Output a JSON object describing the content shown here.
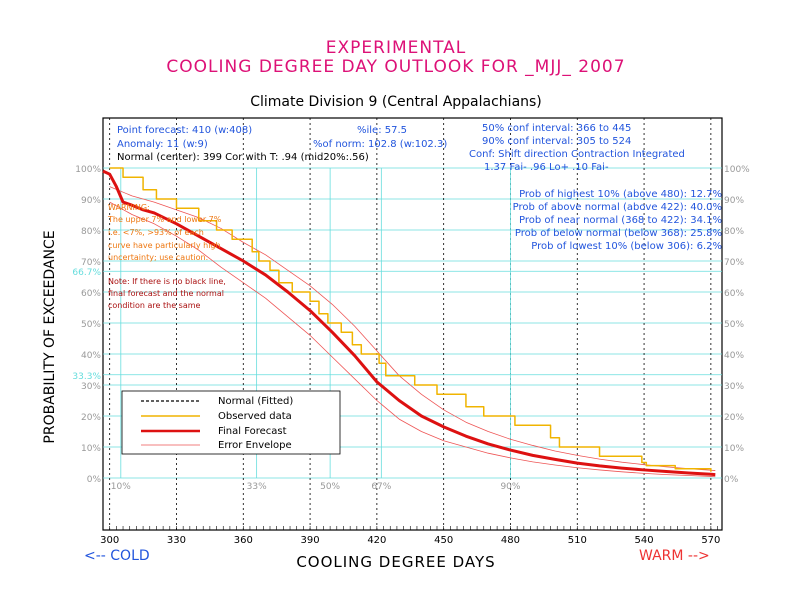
{
  "header": {
    "line1": "EXPERIMENTAL",
    "line2": "COOLING DEGREE DAY OUTLOOK FOR _MJJ_ 2007",
    "subtitle": "Climate Division 9 (Central Appalachians)"
  },
  "info": {
    "point_forecast": "Point forecast: 410 (w:408)",
    "anomaly": "Anomaly: 11 (w:9)",
    "normal": "Normal (center): 399  Cor with T: .94 (mid20%:.56)",
    "pctile": "%ile: 57.5",
    "pct_norm": "%of norm: 102.8 (w:102.3)",
    "ci50": "50% conf interval: 366 to 445",
    "ci90": "90% conf interval: 305 to 524",
    "conf_hdr": "Conf: Shift direction   Contraction   Integrated",
    "conf_vals": "1.37 Fai-          .96 Lo+    .10 Fai-"
  },
  "probs": [
    "Prob of highest 10% (above 480): 12.7%",
    "Prob of above normal (above 422): 40.0%",
    "Prob of near normal (368 to 422): 34.1%",
    "Prob of below normal (below 368): 25.8%",
    "Prob of lowest 10% (below 306): 6.2%"
  ],
  "warning": {
    "lines": [
      "WARNING:",
      "The upper 7% and lower 7%",
      "i.e. <7%, >93% of each",
      "curve have particularly high",
      "uncertainty; use caution."
    ],
    "note": [
      "Note: If there is no black line,",
      "final forecast and  the normal",
      "condition are the same"
    ]
  },
  "legend": {
    "items": [
      {
        "label": "Normal (Fitted)",
        "color": "#000000",
        "style": "dashed"
      },
      {
        "label": "Observed data",
        "color": "#f0b400",
        "style": "solid"
      },
      {
        "label": "Final Forecast",
        "color": "#dd1111",
        "style": "thick"
      },
      {
        "label": "Error Envelope",
        "color": "#ee5555",
        "style": "thin"
      }
    ]
  },
  "footer": {
    "cold": "<-- COLD",
    "warm": "WARM  -->"
  },
  "colors": {
    "title": "#dd1177",
    "info": "#2255dd",
    "cyan": "#66dddd",
    "warning": "#ee7711",
    "note": "#aa1111"
  },
  "chart_data": {
    "type": "line",
    "xlabel": "COOLING DEGREE DAYS",
    "ylabel": "PROBABILITY OF EXCEEDANCE",
    "xlim": [
      297,
      575
    ],
    "ylim": [
      0,
      100
    ],
    "x_ticks": [
      300,
      330,
      360,
      390,
      420,
      450,
      480,
      510,
      540,
      570
    ],
    "y_ticks": [
      0,
      10,
      20,
      30,
      40,
      50,
      60,
      70,
      80,
      90,
      100
    ],
    "y_tick_labels": [
      "0%",
      "10%",
      "20%",
      "30%",
      "40%",
      "50%",
      "60%",
      "70%",
      "80%",
      "90%",
      "100%"
    ],
    "percentile_marks": [
      {
        "label": "10%",
        "x": 305
      },
      {
        "label": "33%",
        "x": 366
      },
      {
        "label": "50%",
        "x": 399
      },
      {
        "label": "67%",
        "x": 422
      },
      {
        "label": "90%",
        "x": 480
      }
    ],
    "y_refs": [
      {
        "label": "66.7%",
        "y": 66.7
      },
      {
        "label": "33.3%",
        "y": 33.3
      }
    ],
    "series": [
      {
        "name": "Final Forecast",
        "x": [
          297,
          300,
          303,
          306,
          310,
          315,
          320,
          330,
          340,
          350,
          360,
          370,
          380,
          390,
          400,
          410,
          420,
          430,
          440,
          450,
          460,
          470,
          480,
          490,
          500,
          510,
          520,
          530,
          540,
          550,
          560,
          570,
          572
        ],
        "y": [
          99,
          98,
          94,
          89,
          88,
          86.5,
          85.5,
          82,
          78,
          74,
          70,
          65.5,
          60,
          54,
          47,
          39.5,
          31,
          25,
          20,
          16.5,
          13.5,
          11,
          9,
          7.3,
          6,
          4.8,
          3.9,
          3.2,
          2.6,
          2.1,
          1.6,
          1.2,
          1.1
        ]
      },
      {
        "name": "Error Envelope (upper)",
        "x": [
          300,
          310,
          320,
          330,
          340,
          350,
          360,
          370,
          380,
          390,
          400,
          410,
          420,
          430,
          440,
          450,
          460,
          470,
          480,
          490,
          500,
          510,
          520,
          530,
          540,
          550,
          560,
          570,
          572
        ],
        "y": [
          94,
          91,
          89,
          86.5,
          84,
          80.5,
          76,
          72,
          67,
          62,
          56,
          49,
          41,
          33,
          27,
          22,
          18,
          15,
          12.5,
          10.5,
          8.7,
          7.3,
          6.1,
          5.1,
          4.3,
          3.6,
          3,
          2.5,
          2.4
        ]
      },
      {
        "name": "Error Envelope (lower)",
        "x": [
          300,
          310,
          320,
          330,
          340,
          350,
          360,
          370,
          380,
          390,
          400,
          410,
          420,
          430,
          440,
          450,
          460,
          470,
          480,
          490,
          500,
          510,
          520,
          530,
          540,
          550,
          560,
          570,
          572
        ],
        "y": [
          89,
          85,
          82,
          78,
          73.5,
          68,
          63,
          58,
          52,
          46,
          39,
          32,
          25,
          19,
          15,
          12,
          10,
          8,
          6.5,
          5.2,
          4.2,
          3.3,
          2.6,
          2,
          1.5,
          1.1,
          0.8,
          0.5,
          0.4
        ]
      },
      {
        "name": "Observed data",
        "x": [
          300,
          306,
          315,
          321,
          330,
          340,
          348,
          355,
          364,
          367,
          372,
          376,
          382,
          390,
          394,
          398,
          404,
          409,
          413,
          421,
          424,
          437,
          447,
          460,
          468,
          482,
          498,
          502,
          520,
          539,
          541,
          554,
          570
        ],
        "y": [
          100,
          97,
          93,
          90,
          87,
          83,
          80,
          77,
          73,
          70,
          67,
          63,
          60,
          57,
          53,
          50,
          47,
          43,
          40,
          37,
          33,
          30,
          27,
          23,
          20,
          17,
          13,
          10,
          7,
          5,
          4,
          3,
          2
        ]
      }
    ]
  }
}
